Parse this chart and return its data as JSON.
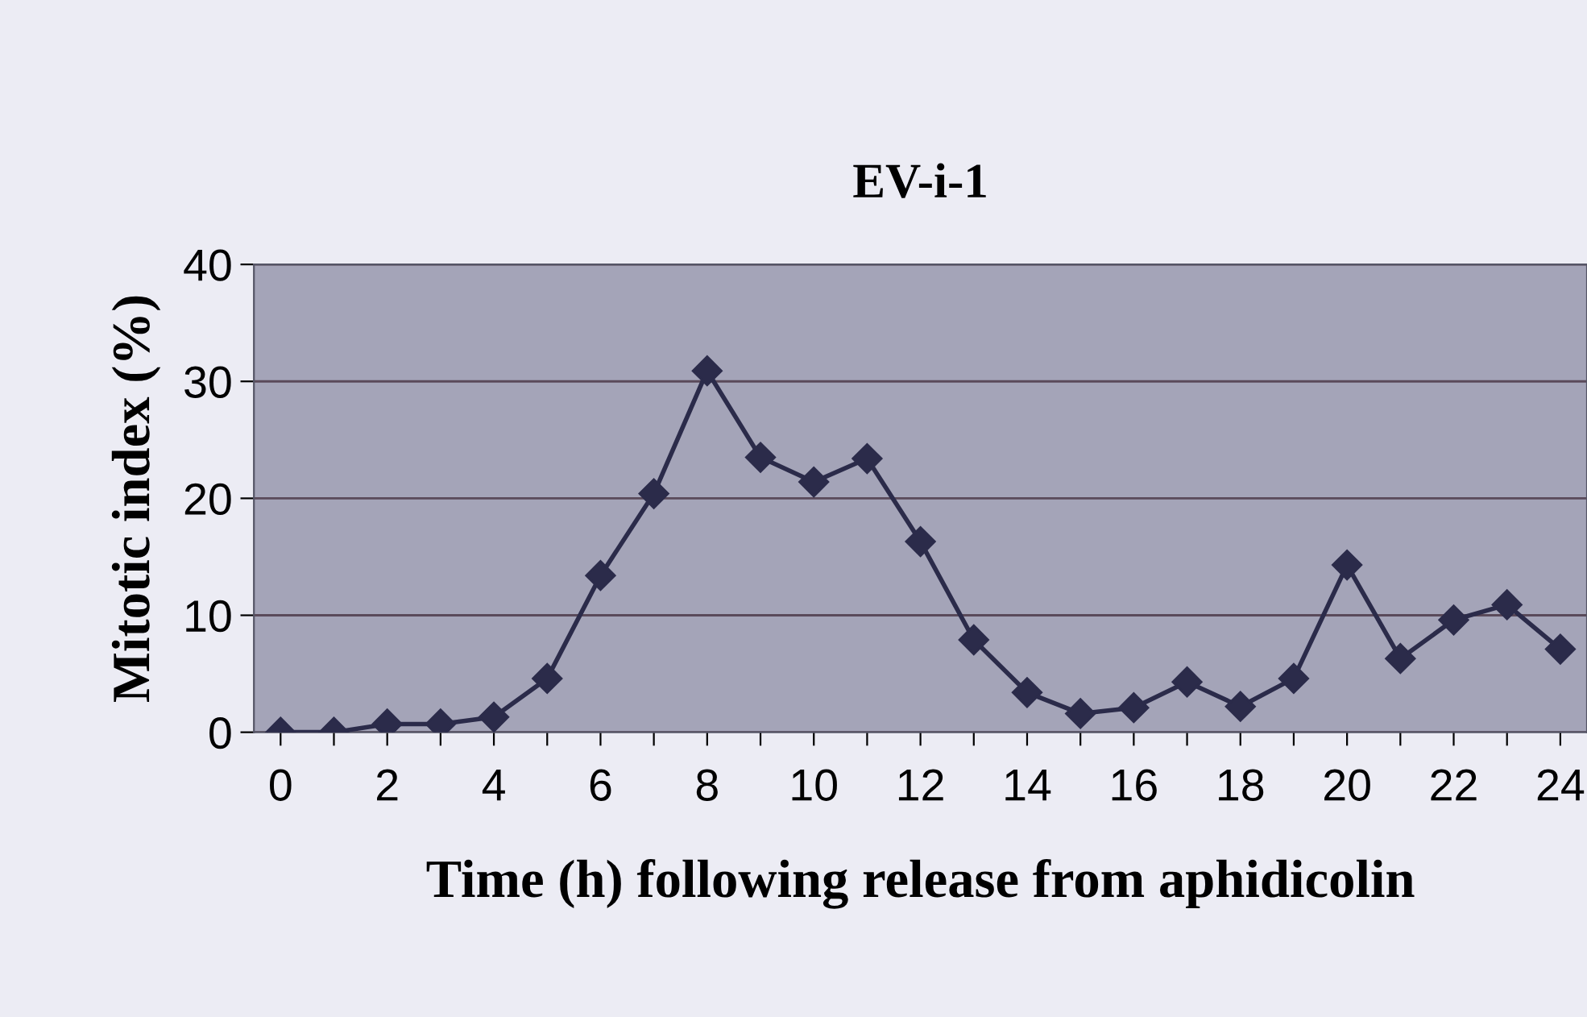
{
  "chart_data": {
    "type": "line",
    "title": "EV-i-1",
    "xlabel": "Time (h) following release from aphidicolin",
    "ylabel": "Mitotic index (%)",
    "x": [
      0,
      1,
      2,
      3,
      4,
      5,
      6,
      7,
      8,
      9,
      10,
      11,
      12,
      13,
      14,
      15,
      16,
      17,
      18,
      19,
      20,
      21,
      22,
      23,
      24
    ],
    "series": [
      {
        "color": "#2b2b4a",
        "values": [
          0,
          0,
          0.7,
          0.7,
          1.3,
          4.6,
          13.4,
          20.4,
          30.9,
          23.5,
          21.4,
          23.4,
          16.3,
          7.9,
          3.4,
          1.6,
          2.1,
          4.3,
          2.2,
          4.6,
          14.3,
          6.3,
          9.6,
          10.9,
          7.1
        ]
      }
    ],
    "xlim": [
      -0.5,
      24.5
    ],
    "xticks": [
      0,
      {
        "value": 1,
        "label": null
      },
      2,
      {
        "value": 3,
        "label": null
      },
      4,
      {
        "value": 5,
        "label": null
      },
      6,
      {
        "value": 7,
        "label": null
      },
      8,
      {
        "value": 9,
        "label": null
      },
      10,
      {
        "value": 11,
        "label": null
      },
      12,
      {
        "value": 13,
        "label": null
      },
      14,
      {
        "value": 15,
        "label": null
      },
      16,
      {
        "value": 17,
        "label": null
      },
      18,
      {
        "value": 19,
        "label": null
      },
      20,
      {
        "value": 21,
        "label": null
      },
      22,
      {
        "value": 23,
        "label": null
      },
      24
    ],
    "ylim": [
      0,
      40
    ],
    "yticks": [
      0,
      10,
      20,
      30,
      40
    ],
    "grid": "y",
    "marker": "diamond",
    "line_style": "solid",
    "legend": false
  }
}
